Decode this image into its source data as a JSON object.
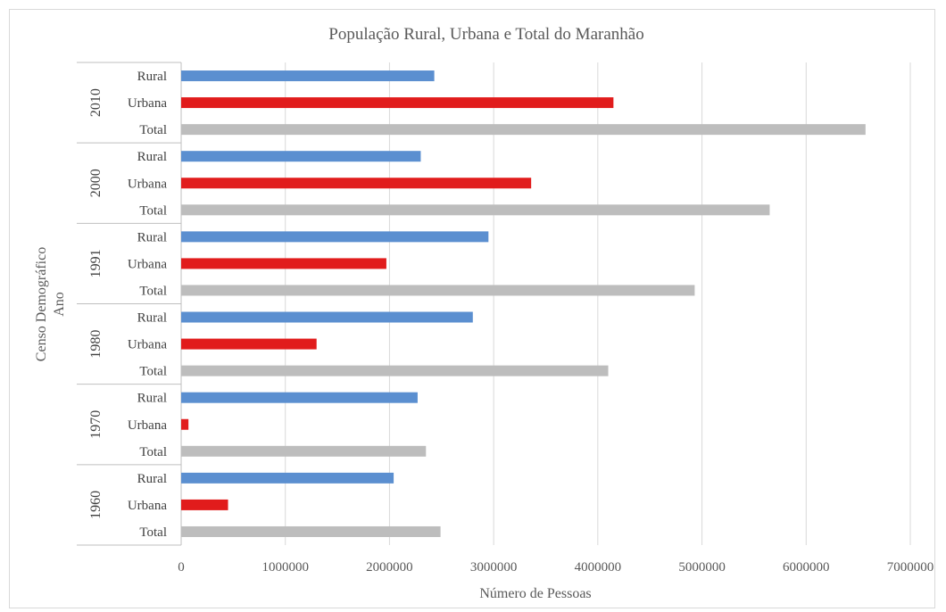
{
  "chart_data": {
    "type": "bar",
    "orientation": "horizontal",
    "title": "População Rural, Urbana e Total do Maranhão",
    "xlabel": "Número de Pessoas",
    "ylabel_lines": [
      "Censo Demográfico",
      "Ano"
    ],
    "xlim": [
      0,
      7000000
    ],
    "xticks": [
      "0",
      "1000000",
      "2000000",
      "3000000",
      "4000000",
      "5000000",
      "6000000",
      "7000000"
    ],
    "grid": true,
    "legend": "none",
    "groups": [
      {
        "year": "2010",
        "bars": [
          {
            "category": "Rural",
            "value": 2430000,
            "color": "#5b8fd0"
          },
          {
            "category": "Urbana",
            "value": 4150000,
            "color": "#e11c1c"
          },
          {
            "category": "Total",
            "value": 6570000,
            "color": "#bdbdbd"
          }
        ]
      },
      {
        "year": "2000",
        "bars": [
          {
            "category": "Rural",
            "value": 2300000,
            "color": "#5b8fd0"
          },
          {
            "category": "Urbana",
            "value": 3360000,
            "color": "#e11c1c"
          },
          {
            "category": "Total",
            "value": 5650000,
            "color": "#bdbdbd"
          }
        ]
      },
      {
        "year": "1991",
        "bars": [
          {
            "category": "Rural",
            "value": 2950000,
            "color": "#5b8fd0"
          },
          {
            "category": "Urbana",
            "value": 1970000,
            "color": "#e11c1c"
          },
          {
            "category": "Total",
            "value": 4930000,
            "color": "#bdbdbd"
          }
        ]
      },
      {
        "year": "1980",
        "bars": [
          {
            "category": "Rural",
            "value": 2800000,
            "color": "#5b8fd0"
          },
          {
            "category": "Urbana",
            "value": 1300000,
            "color": "#e11c1c"
          },
          {
            "category": "Total",
            "value": 4100000,
            "color": "#bdbdbd"
          }
        ]
      },
      {
        "year": "1970",
        "bars": [
          {
            "category": "Rural",
            "value": 2270000,
            "color": "#5b8fd0"
          },
          {
            "category": "Urbana",
            "value": 70000,
            "color": "#e11c1c"
          },
          {
            "category": "Total",
            "value": 2350000,
            "color": "#bdbdbd"
          }
        ]
      },
      {
        "year": "1960",
        "bars": [
          {
            "category": "Rural",
            "value": 2040000,
            "color": "#5b8fd0"
          },
          {
            "category": "Urbana",
            "value": 450000,
            "color": "#e11c1c"
          },
          {
            "category": "Total",
            "value": 2490000,
            "color": "#bdbdbd"
          }
        ]
      }
    ]
  }
}
